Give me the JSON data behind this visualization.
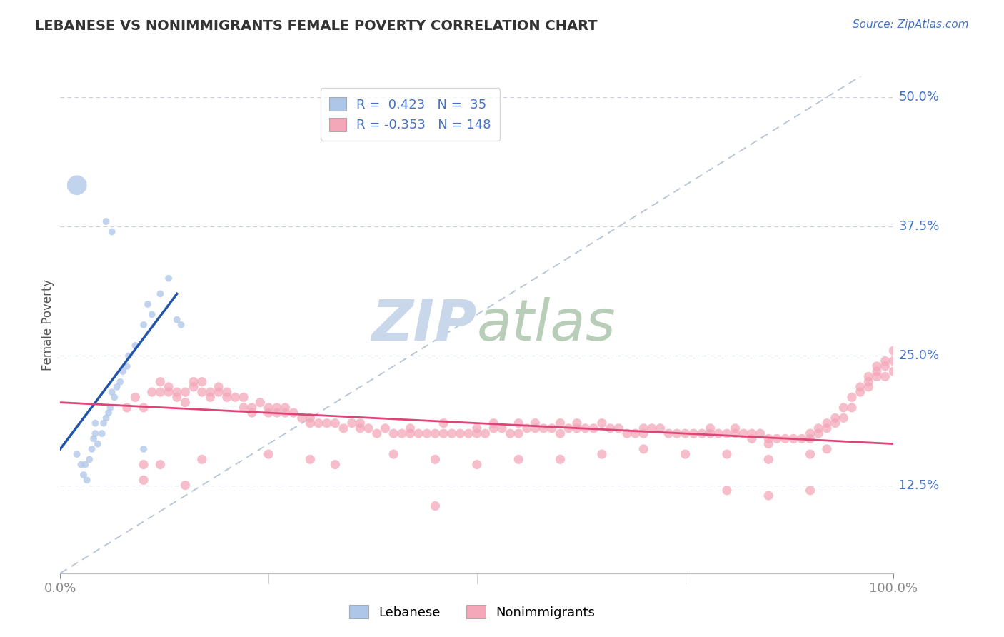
{
  "title": "LEBANESE VS NONIMMIGRANTS FEMALE POVERTY CORRELATION CHART",
  "source_text": "Source: ZipAtlas.com",
  "ylabel": "Female Poverty",
  "xlim": [
    0.0,
    1.0
  ],
  "ylim": [
    0.04,
    0.52
  ],
  "yticks": [
    0.125,
    0.25,
    0.375,
    0.5
  ],
  "ytick_labels": [
    "12.5%",
    "25.0%",
    "37.5%",
    "50.0%"
  ],
  "xticks": [
    0.0,
    1.0
  ],
  "xtick_labels": [
    "0.0%",
    "100.0%"
  ],
  "blue_color": "#aec6e8",
  "pink_color": "#f4a7b9",
  "blue_line_color": "#2255aa",
  "pink_line_color": "#dd4477",
  "dashed_line_color": "#b8c4d4",
  "watermark_zip_color": "#c5d5e8",
  "watermark_atlas_color": "#c8d8c8",
  "title_color": "#333333",
  "source_color": "#4472c4",
  "axis_label_color": "#555555",
  "tick_label_color": "#4472c4",
  "background_color": "#ffffff",
  "grid_color": "#c8d0dc",
  "lebanese_points": [
    [
      0.02,
      0.155
    ],
    [
      0.025,
      0.145
    ],
    [
      0.028,
      0.135
    ],
    [
      0.03,
      0.145
    ],
    [
      0.032,
      0.13
    ],
    [
      0.035,
      0.15
    ],
    [
      0.038,
      0.16
    ],
    [
      0.04,
      0.17
    ],
    [
      0.042,
      0.175
    ],
    [
      0.042,
      0.185
    ],
    [
      0.045,
      0.165
    ],
    [
      0.05,
      0.175
    ],
    [
      0.052,
      0.185
    ],
    [
      0.055,
      0.19
    ],
    [
      0.058,
      0.195
    ],
    [
      0.06,
      0.2
    ],
    [
      0.062,
      0.215
    ],
    [
      0.065,
      0.21
    ],
    [
      0.068,
      0.22
    ],
    [
      0.072,
      0.225
    ],
    [
      0.075,
      0.235
    ],
    [
      0.08,
      0.24
    ],
    [
      0.082,
      0.25
    ],
    [
      0.09,
      0.26
    ],
    [
      0.1,
      0.28
    ],
    [
      0.11,
      0.29
    ],
    [
      0.14,
      0.285
    ],
    [
      0.145,
      0.28
    ],
    [
      0.105,
      0.3
    ],
    [
      0.12,
      0.31
    ],
    [
      0.13,
      0.325
    ],
    [
      0.02,
      0.415
    ],
    [
      0.055,
      0.38
    ],
    [
      0.062,
      0.37
    ],
    [
      0.1,
      0.16
    ]
  ],
  "lebanese_sizes": [
    50,
    50,
    50,
    50,
    50,
    50,
    50,
    50,
    50,
    50,
    50,
    50,
    50,
    50,
    50,
    50,
    50,
    50,
    50,
    50,
    50,
    50,
    50,
    50,
    50,
    50,
    50,
    50,
    50,
    50,
    50,
    400,
    50,
    50,
    50
  ],
  "blue_line": [
    0.0,
    0.16,
    0.14,
    0.31
  ],
  "pink_line": [
    0.0,
    0.205,
    1.0,
    0.165
  ],
  "nonimmigrant_points": [
    [
      0.08,
      0.2
    ],
    [
      0.09,
      0.21
    ],
    [
      0.1,
      0.2
    ],
    [
      0.11,
      0.215
    ],
    [
      0.12,
      0.215
    ],
    [
      0.12,
      0.225
    ],
    [
      0.13,
      0.22
    ],
    [
      0.13,
      0.215
    ],
    [
      0.14,
      0.215
    ],
    [
      0.14,
      0.21
    ],
    [
      0.15,
      0.205
    ],
    [
      0.15,
      0.215
    ],
    [
      0.16,
      0.22
    ],
    [
      0.16,
      0.225
    ],
    [
      0.17,
      0.215
    ],
    [
      0.17,
      0.225
    ],
    [
      0.18,
      0.215
    ],
    [
      0.18,
      0.21
    ],
    [
      0.19,
      0.215
    ],
    [
      0.19,
      0.22
    ],
    [
      0.2,
      0.21
    ],
    [
      0.2,
      0.215
    ],
    [
      0.21,
      0.21
    ],
    [
      0.22,
      0.2
    ],
    [
      0.22,
      0.21
    ],
    [
      0.23,
      0.2
    ],
    [
      0.23,
      0.195
    ],
    [
      0.24,
      0.205
    ],
    [
      0.25,
      0.2
    ],
    [
      0.25,
      0.195
    ],
    [
      0.26,
      0.2
    ],
    [
      0.26,
      0.195
    ],
    [
      0.27,
      0.195
    ],
    [
      0.27,
      0.2
    ],
    [
      0.28,
      0.195
    ],
    [
      0.29,
      0.19
    ],
    [
      0.3,
      0.19
    ],
    [
      0.3,
      0.185
    ],
    [
      0.31,
      0.185
    ],
    [
      0.32,
      0.185
    ],
    [
      0.33,
      0.185
    ],
    [
      0.34,
      0.18
    ],
    [
      0.35,
      0.185
    ],
    [
      0.36,
      0.18
    ],
    [
      0.36,
      0.185
    ],
    [
      0.37,
      0.18
    ],
    [
      0.38,
      0.175
    ],
    [
      0.39,
      0.18
    ],
    [
      0.4,
      0.175
    ],
    [
      0.41,
      0.175
    ],
    [
      0.42,
      0.175
    ],
    [
      0.42,
      0.18
    ],
    [
      0.43,
      0.175
    ],
    [
      0.44,
      0.175
    ],
    [
      0.45,
      0.175
    ],
    [
      0.46,
      0.175
    ],
    [
      0.46,
      0.185
    ],
    [
      0.47,
      0.175
    ],
    [
      0.48,
      0.175
    ],
    [
      0.49,
      0.175
    ],
    [
      0.5,
      0.175
    ],
    [
      0.5,
      0.18
    ],
    [
      0.51,
      0.175
    ],
    [
      0.52,
      0.18
    ],
    [
      0.52,
      0.185
    ],
    [
      0.53,
      0.18
    ],
    [
      0.54,
      0.175
    ],
    [
      0.55,
      0.175
    ],
    [
      0.55,
      0.185
    ],
    [
      0.56,
      0.18
    ],
    [
      0.57,
      0.18
    ],
    [
      0.57,
      0.185
    ],
    [
      0.58,
      0.18
    ],
    [
      0.59,
      0.18
    ],
    [
      0.6,
      0.185
    ],
    [
      0.6,
      0.175
    ],
    [
      0.61,
      0.18
    ],
    [
      0.62,
      0.18
    ],
    [
      0.62,
      0.185
    ],
    [
      0.63,
      0.18
    ],
    [
      0.64,
      0.18
    ],
    [
      0.65,
      0.185
    ],
    [
      0.66,
      0.18
    ],
    [
      0.67,
      0.18
    ],
    [
      0.68,
      0.175
    ],
    [
      0.69,
      0.175
    ],
    [
      0.7,
      0.18
    ],
    [
      0.7,
      0.175
    ],
    [
      0.71,
      0.18
    ],
    [
      0.72,
      0.18
    ],
    [
      0.73,
      0.175
    ],
    [
      0.74,
      0.175
    ],
    [
      0.75,
      0.175
    ],
    [
      0.76,
      0.175
    ],
    [
      0.77,
      0.175
    ],
    [
      0.78,
      0.175
    ],
    [
      0.78,
      0.18
    ],
    [
      0.79,
      0.175
    ],
    [
      0.8,
      0.175
    ],
    [
      0.81,
      0.175
    ],
    [
      0.81,
      0.18
    ],
    [
      0.82,
      0.175
    ],
    [
      0.83,
      0.175
    ],
    [
      0.83,
      0.17
    ],
    [
      0.84,
      0.175
    ],
    [
      0.85,
      0.17
    ],
    [
      0.85,
      0.165
    ],
    [
      0.86,
      0.17
    ],
    [
      0.87,
      0.17
    ],
    [
      0.88,
      0.17
    ],
    [
      0.89,
      0.17
    ],
    [
      0.9,
      0.17
    ],
    [
      0.9,
      0.175
    ],
    [
      0.91,
      0.175
    ],
    [
      0.91,
      0.18
    ],
    [
      0.92,
      0.18
    ],
    [
      0.92,
      0.185
    ],
    [
      0.93,
      0.185
    ],
    [
      0.93,
      0.19
    ],
    [
      0.94,
      0.19
    ],
    [
      0.94,
      0.2
    ],
    [
      0.95,
      0.2
    ],
    [
      0.95,
      0.21
    ],
    [
      0.96,
      0.215
    ],
    [
      0.96,
      0.22
    ],
    [
      0.97,
      0.22
    ],
    [
      0.97,
      0.225
    ],
    [
      0.97,
      0.23
    ],
    [
      0.98,
      0.23
    ],
    [
      0.98,
      0.235
    ],
    [
      0.98,
      0.24
    ],
    [
      0.99,
      0.23
    ],
    [
      0.99,
      0.24
    ],
    [
      0.99,
      0.245
    ],
    [
      1.0,
      0.235
    ],
    [
      1.0,
      0.245
    ],
    [
      1.0,
      0.255
    ],
    [
      0.1,
      0.145
    ],
    [
      0.12,
      0.145
    ],
    [
      0.17,
      0.15
    ],
    [
      0.25,
      0.155
    ],
    [
      0.3,
      0.15
    ],
    [
      0.33,
      0.145
    ],
    [
      0.4,
      0.155
    ],
    [
      0.45,
      0.15
    ],
    [
      0.5,
      0.145
    ],
    [
      0.55,
      0.15
    ],
    [
      0.6,
      0.15
    ],
    [
      0.65,
      0.155
    ],
    [
      0.7,
      0.16
    ],
    [
      0.75,
      0.155
    ],
    [
      0.8,
      0.155
    ],
    [
      0.85,
      0.15
    ],
    [
      0.9,
      0.155
    ],
    [
      0.92,
      0.16
    ],
    [
      0.1,
      0.13
    ],
    [
      0.15,
      0.125
    ],
    [
      0.45,
      0.105
    ],
    [
      0.8,
      0.12
    ],
    [
      0.85,
      0.115
    ],
    [
      0.9,
      0.12
    ]
  ]
}
